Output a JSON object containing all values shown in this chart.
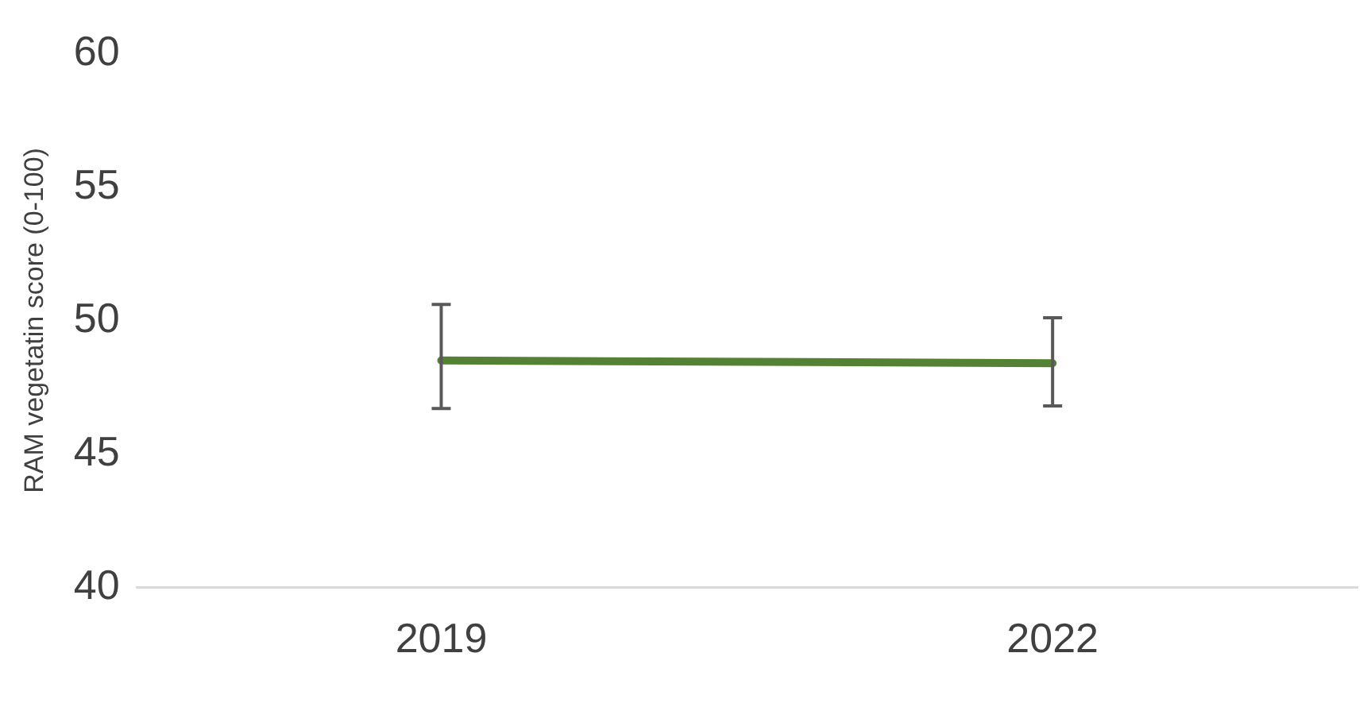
{
  "chart_data": {
    "type": "line",
    "ylabel": "RAM vegetatin score (0-100)",
    "categories": [
      "2019",
      "2022"
    ],
    "series": [
      {
        "color": "#548235",
        "values": [
          48.5,
          48.4
        ],
        "errors": [
          [
            46.7,
            50.6
          ],
          [
            46.8,
            50.1
          ]
        ]
      }
    ],
    "ylim": [
      40,
      60
    ],
    "yticks": [
      40,
      45,
      50,
      55,
      60
    ],
    "grid": false,
    "legend": false,
    "marker": "none"
  }
}
